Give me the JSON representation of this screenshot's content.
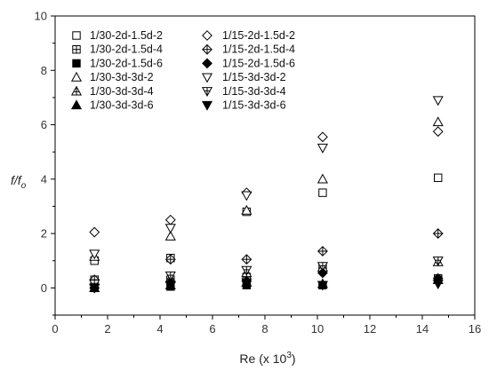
{
  "chart_data": {
    "type": "scatter",
    "title": "",
    "xlabel": "Re (x 10",
    "xlabel_sup": "3",
    "xlabel_close": ")",
    "ylabel_main": "f/f",
    "ylabel_sub": "o",
    "xlim": [
      0,
      16
    ],
    "ylim": [
      -1,
      10
    ],
    "xticks": [
      0,
      2,
      4,
      6,
      8,
      10,
      12,
      14,
      16
    ],
    "yticks": [
      0,
      2,
      4,
      6,
      8,
      10
    ],
    "grid": false,
    "legend_placement": "top-left",
    "series": [
      {
        "name": "1/30-2d-1.5d-2",
        "marker": "square-open",
        "x": [
          1.5,
          4.4,
          7.3,
          10.2,
          14.6
        ],
        "y": [
          1.0,
          1.1,
          2.8,
          3.5,
          4.05
        ]
      },
      {
        "name": "1/30-2d-1.5d-4",
        "marker": "square-cross",
        "x": [
          1.5,
          4.4,
          7.3,
          10.2,
          14.6
        ],
        "y": [
          0.3,
          0.3,
          0.4,
          0.7,
          0.35
        ]
      },
      {
        "name": "1/30-2d-1.5d-6",
        "marker": "square-filled",
        "x": [
          1.5,
          4.4,
          7.3,
          10.2,
          14.6
        ],
        "y": [
          0.0,
          0.05,
          0.1,
          0.1,
          0.3
        ]
      },
      {
        "name": "1/30-3d-3d-2",
        "marker": "triangle-up-open",
        "x": [
          1.5,
          4.4,
          7.3,
          10.2,
          14.6
        ],
        "y": [
          1.15,
          1.9,
          2.85,
          4.0,
          6.1
        ]
      },
      {
        "name": "1/30-3d-3d-4",
        "marker": "triangle-up-cross",
        "x": [
          1.5,
          4.4,
          7.3,
          10.2,
          14.6
        ],
        "y": [
          0.25,
          0.35,
          0.55,
          0.75,
          0.95
        ]
      },
      {
        "name": "1/30-3d-3d-6",
        "marker": "triangle-up-filled",
        "x": [
          1.5,
          4.4,
          7.3,
          10.2,
          14.6
        ],
        "y": [
          0.0,
          0.1,
          0.2,
          0.15,
          0.3
        ]
      },
      {
        "name": "1/15-2d-1.5d-2",
        "marker": "diamond-open",
        "x": [
          1.5,
          4.4,
          7.3,
          10.2,
          14.6
        ],
        "y": [
          2.05,
          2.5,
          3.5,
          5.55,
          5.75
        ]
      },
      {
        "name": "1/15-2d-1.5d-4",
        "marker": "diamond-cross",
        "x": [
          1.5,
          4.4,
          7.3,
          10.2,
          14.6
        ],
        "y": [
          0.3,
          1.05,
          1.05,
          1.35,
          2.0
        ]
      },
      {
        "name": "1/15-2d-1.5d-6",
        "marker": "diamond-filled",
        "x": [
          1.5,
          4.4,
          7.3,
          10.2,
          14.6
        ],
        "y": [
          0.0,
          0.2,
          0.25,
          0.55,
          0.35
        ]
      },
      {
        "name": "1/15-3d-3d-2",
        "marker": "triangle-down-open",
        "x": [
          1.5,
          4.4,
          7.3,
          10.2,
          14.6
        ],
        "y": [
          1.25,
          2.2,
          3.4,
          5.15,
          6.9
        ]
      },
      {
        "name": "1/15-3d-3d-4",
        "marker": "triangle-down-cross",
        "x": [
          1.5,
          4.4,
          7.3,
          10.2,
          14.6
        ],
        "y": [
          0.15,
          0.45,
          0.65,
          0.8,
          1.0
        ]
      },
      {
        "name": "1/15-3d-3d-6",
        "marker": "triangle-down-filled",
        "x": [
          1.5,
          4.4,
          7.3,
          10.2,
          14.6
        ],
        "y": [
          0.0,
          0.1,
          0.2,
          0.1,
          0.15
        ]
      }
    ]
  },
  "colors": {
    "marker": "#000000",
    "axis": "#000000",
    "background": "#ffffff"
  }
}
